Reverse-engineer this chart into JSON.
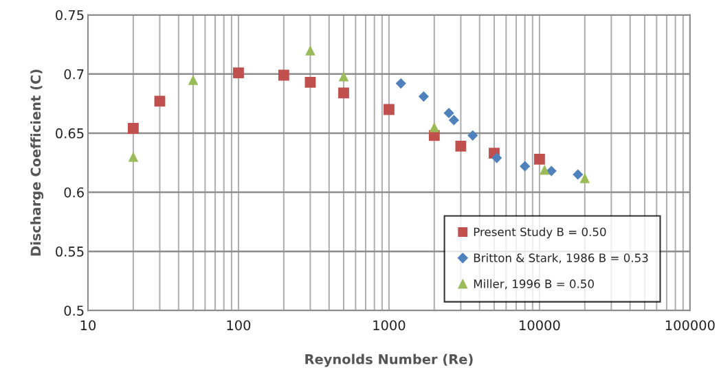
{
  "chart_data": {
    "type": "scatter",
    "xlabel": "Reynolds Number (Re)",
    "ylabel": "Discharge Coefficient (C)",
    "log": "x",
    "xlim": [
      10,
      100000
    ],
    "xticks": [
      10,
      100,
      1000,
      10000,
      100000
    ],
    "ylim": [
      0.5,
      0.75
    ],
    "yticks": [
      {
        "value": 0.5,
        "label": "0.5"
      },
      {
        "value": 0.55,
        "label": "0.55"
      },
      {
        "value": 0.6,
        "label": "0.6"
      },
      {
        "value": 0.65,
        "label": "0.65"
      },
      {
        "value": 0.7,
        "label": "0.7"
      },
      {
        "value": 0.75,
        "label": "0.75"
      }
    ],
    "grid": true,
    "legend": "bottom right",
    "series": [
      {
        "name": "Present Study B = 0.50",
        "color": "#c0504d",
        "marker": "square",
        "x": [
          20,
          30,
          100,
          200,
          300,
          500,
          1000,
          2000,
          3000,
          5000,
          10000
        ],
        "values": [
          0.654,
          0.677,
          0.701,
          0.699,
          0.693,
          0.684,
          0.67,
          0.648,
          0.639,
          0.633,
          0.628
        ]
      },
      {
        "name": "Britton & Stark, 1986 B = 0.53",
        "color": "#4f81bd",
        "marker": "diamond",
        "x": [
          1200,
          1700,
          2500,
          2700,
          3600,
          5200,
          8000,
          12000,
          18000
        ],
        "values": [
          0.692,
          0.681,
          0.667,
          0.661,
          0.648,
          0.629,
          0.622,
          0.618,
          0.615
        ]
      },
      {
        "name": "Miller, 1996 B = 0.50",
        "color": "#9bbb59",
        "marker": "triangle",
        "x": [
          20,
          50,
          300,
          500,
          2000,
          10800,
          20000
        ],
        "values": [
          0.63,
          0.695,
          0.72,
          0.698,
          0.655,
          0.619,
          0.612
        ]
      }
    ]
  }
}
